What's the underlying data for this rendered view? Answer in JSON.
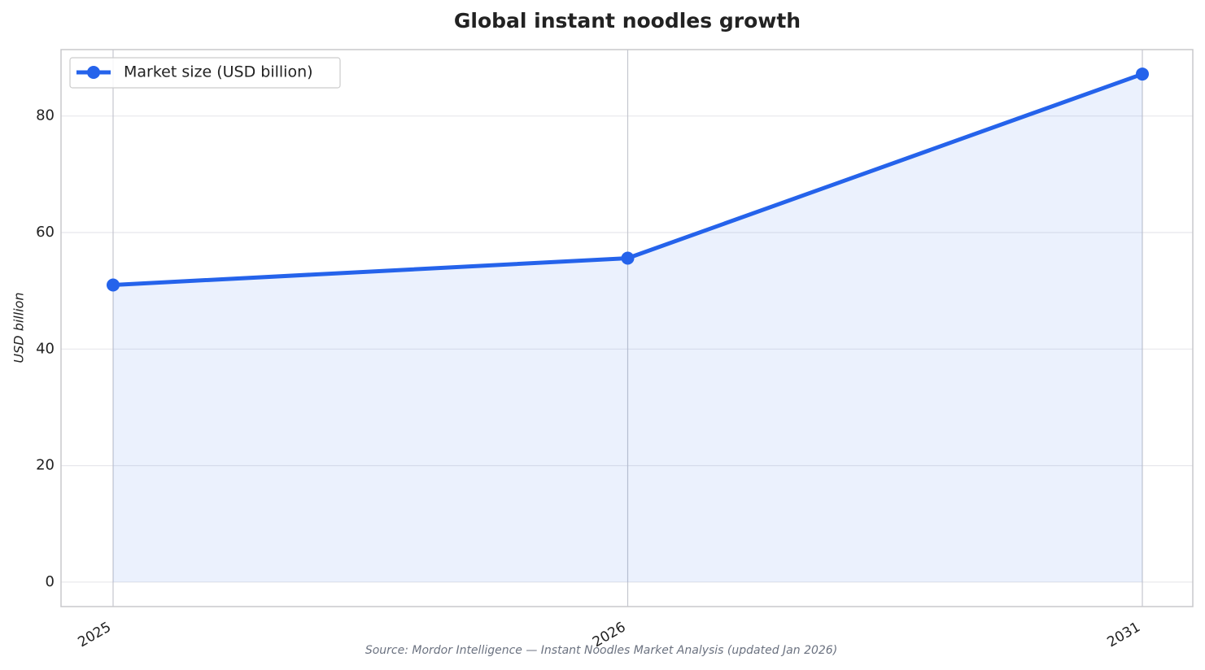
{
  "chart_data": {
    "type": "line",
    "title": "Global instant noodles growth",
    "y_label": "USD billion",
    "source": "Source: Mordor Intelligence — Instant Noodles Market Analysis (updated Jan 2026)",
    "categories": [
      "2025",
      "2026",
      "2031"
    ],
    "series": [
      {
        "name": "Market size (USD billion)",
        "color": "#2563eb",
        "values": [
          51.0,
          55.6,
          87.2
        ]
      }
    ],
    "ylim": [
      -4.2,
      91.4
    ],
    "yticks": [
      0,
      20,
      40,
      60,
      80
    ],
    "grid": true,
    "fill": true,
    "legend": "upper left"
  }
}
